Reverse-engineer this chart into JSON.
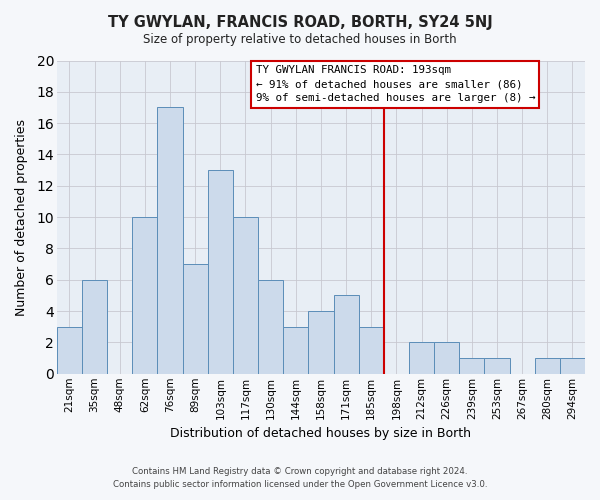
{
  "title": "TY GWYLAN, FRANCIS ROAD, BORTH, SY24 5NJ",
  "subtitle": "Size of property relative to detached houses in Borth",
  "xlabel": "Distribution of detached houses by size in Borth",
  "ylabel": "Number of detached properties",
  "bar_labels": [
    "21sqm",
    "35sqm",
    "48sqm",
    "62sqm",
    "76sqm",
    "89sqm",
    "103sqm",
    "117sqm",
    "130sqm",
    "144sqm",
    "158sqm",
    "171sqm",
    "185sqm",
    "198sqm",
    "212sqm",
    "226sqm",
    "239sqm",
    "253sqm",
    "267sqm",
    "280sqm",
    "294sqm"
  ],
  "bar_values": [
    3,
    6,
    0,
    10,
    17,
    7,
    13,
    10,
    6,
    3,
    4,
    5,
    3,
    0,
    2,
    2,
    1,
    1,
    0,
    1,
    1
  ],
  "bar_color": "#ccdaeb",
  "bar_edge_color": "#5b8db8",
  "ylim": [
    0,
    20
  ],
  "yticks": [
    0,
    2,
    4,
    6,
    8,
    10,
    12,
    14,
    16,
    18,
    20
  ],
  "vline_x": 13.0,
  "vline_color": "#cc0000",
  "annotation_title": "TY GWYLAN FRANCIS ROAD: 193sqm",
  "annotation_line1": "← 91% of detached houses are smaller (86)",
  "annotation_line2": "9% of semi-detached houses are larger (8) →",
  "annotation_box_color": "#ffffff",
  "annotation_border_color": "#cc0000",
  "footer_line1": "Contains HM Land Registry data © Crown copyright and database right 2024.",
  "footer_line2": "Contains public sector information licensed under the Open Government Licence v3.0.",
  "plot_bg_color": "#e8eef5",
  "fig_bg_color": "#f5f7fa",
  "grid_color": "#c8c8d0"
}
